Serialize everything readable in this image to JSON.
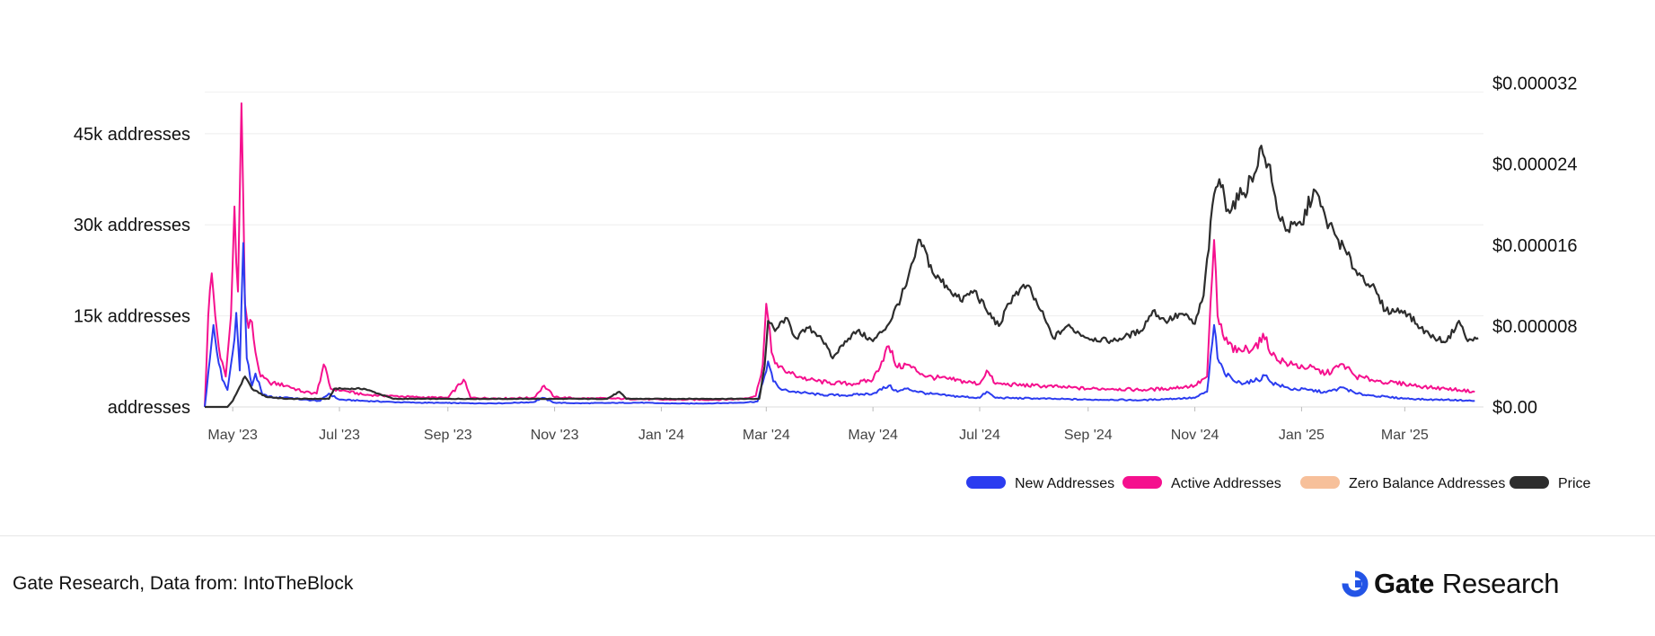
{
  "chart_data": {
    "type": "line",
    "title": "",
    "xlabel": "",
    "ylabel": "",
    "y_left": {
      "range": [
        0,
        54000
      ],
      "ticks": [
        0,
        15000,
        30000,
        45000
      ],
      "tick_labels": [
        "addresses",
        "15k addresses",
        "30k addresses",
        "45k addresses"
      ]
    },
    "y_right": {
      "range": [
        0,
        3.24e-05
      ],
      "ticks": [
        0,
        8e-06,
        1.6e-05,
        2.4e-05,
        3.2e-05
      ],
      "tick_labels": [
        "$0.00",
        "$0.000008",
        "$0.000016",
        "$0.000024",
        "$0.000032"
      ]
    },
    "x_range": [
      "2023-04-15",
      "2025-04-15"
    ],
    "x_ticks": [
      {
        "date": "2023-05-01",
        "label": "May '23"
      },
      {
        "date": "2023-07-01",
        "label": "Jul '23"
      },
      {
        "date": "2023-09-01",
        "label": "Sep '23"
      },
      {
        "date": "2023-11-01",
        "label": "Nov '23"
      },
      {
        "date": "2024-01-01",
        "label": "Jan '24"
      },
      {
        "date": "2024-03-01",
        "label": "Mar '24"
      },
      {
        "date": "2024-05-01",
        "label": "May '24"
      },
      {
        "date": "2024-07-01",
        "label": "Jul '24"
      },
      {
        "date": "2024-09-01",
        "label": "Sep '24"
      },
      {
        "date": "2024-11-01",
        "label": "Nov '24"
      },
      {
        "date": "2025-01-01",
        "label": "Jan '25"
      },
      {
        "date": "2025-03-01",
        "label": "Mar '25"
      }
    ],
    "grid": true,
    "legend_position": "bottom-right",
    "series": [
      {
        "name": "New Addresses",
        "axis": "left",
        "color": "#2b3cf0",
        "points": [
          [
            "2023-04-15",
            0
          ],
          [
            "2023-04-18",
            8000
          ],
          [
            "2023-04-20",
            13500
          ],
          [
            "2023-04-22",
            9000
          ],
          [
            "2023-04-25",
            4500
          ],
          [
            "2023-04-28",
            2800
          ],
          [
            "2023-05-01",
            9000
          ],
          [
            "2023-05-03",
            15500
          ],
          [
            "2023-05-05",
            6000
          ],
          [
            "2023-05-07",
            27000
          ],
          [
            "2023-05-09",
            8000
          ],
          [
            "2023-05-12",
            3500
          ],
          [
            "2023-05-14",
            5500
          ],
          [
            "2023-05-18",
            2000
          ],
          [
            "2023-05-25",
            1500
          ],
          [
            "2023-06-01",
            1600
          ],
          [
            "2023-06-10",
            1200
          ],
          [
            "2023-06-20",
            1000
          ],
          [
            "2023-06-25",
            2200
          ],
          [
            "2023-07-01",
            1200
          ],
          [
            "2023-07-15",
            1000
          ],
          [
            "2023-08-01",
            800
          ],
          [
            "2023-08-15",
            700
          ],
          [
            "2023-09-01",
            650
          ],
          [
            "2023-09-15",
            600
          ],
          [
            "2023-10-01",
            600
          ],
          [
            "2023-10-20",
            800
          ],
          [
            "2023-10-25",
            1500
          ],
          [
            "2023-11-01",
            700
          ],
          [
            "2023-11-15",
            600
          ],
          [
            "2023-12-01",
            650
          ],
          [
            "2023-12-20",
            700
          ],
          [
            "2024-01-01",
            600
          ],
          [
            "2024-01-15",
            550
          ],
          [
            "2024-02-01",
            600
          ],
          [
            "2024-02-15",
            700
          ],
          [
            "2024-02-25",
            900
          ],
          [
            "2024-02-28",
            4000
          ],
          [
            "2024-03-02",
            7500
          ],
          [
            "2024-03-05",
            4200
          ],
          [
            "2024-03-10",
            2800
          ],
          [
            "2024-03-20",
            2400
          ],
          [
            "2024-04-01",
            2000
          ],
          [
            "2024-04-15",
            1900
          ],
          [
            "2024-05-01",
            2200
          ],
          [
            "2024-05-10",
            3500
          ],
          [
            "2024-05-15",
            2500
          ],
          [
            "2024-05-20",
            3000
          ],
          [
            "2024-06-01",
            2200
          ],
          [
            "2024-06-15",
            1800
          ],
          [
            "2024-07-01",
            1500
          ],
          [
            "2024-07-05",
            2500
          ],
          [
            "2024-07-10",
            1500
          ],
          [
            "2024-08-01",
            1400
          ],
          [
            "2024-08-15",
            1300
          ],
          [
            "2024-09-01",
            1200
          ],
          [
            "2024-09-15",
            1200
          ],
          [
            "2024-10-01",
            1100
          ],
          [
            "2024-10-15",
            1300
          ],
          [
            "2024-11-01",
            1500
          ],
          [
            "2024-11-08",
            2500
          ],
          [
            "2024-11-12",
            13500
          ],
          [
            "2024-11-14",
            8000
          ],
          [
            "2024-11-18",
            5500
          ],
          [
            "2024-11-25",
            4000
          ],
          [
            "2024-12-05",
            4200
          ],
          [
            "2024-12-12",
            5200
          ],
          [
            "2024-12-15",
            4000
          ],
          [
            "2024-12-25",
            3000
          ],
          [
            "2025-01-05",
            2800
          ],
          [
            "2025-01-15",
            2400
          ],
          [
            "2025-01-25",
            3200
          ],
          [
            "2025-02-01",
            2200
          ],
          [
            "2025-02-10",
            1900
          ],
          [
            "2025-02-20",
            1600
          ],
          [
            "2025-03-01",
            1400
          ],
          [
            "2025-03-15",
            1200
          ],
          [
            "2025-03-25",
            1200
          ],
          [
            "2025-04-01",
            1100
          ],
          [
            "2025-04-10",
            1000
          ]
        ]
      },
      {
        "name": "Active Addresses",
        "axis": "left",
        "color": "#f5108e",
        "points": [
          [
            "2023-04-15",
            0
          ],
          [
            "2023-04-17",
            15000
          ],
          [
            "2023-04-19",
            22000
          ],
          [
            "2023-04-21",
            15000
          ],
          [
            "2023-04-24",
            8000
          ],
          [
            "2023-04-27",
            5000
          ],
          [
            "2023-04-30",
            15000
          ],
          [
            "2023-05-02",
            33000
          ],
          [
            "2023-05-04",
            19000
          ],
          [
            "2023-05-06",
            50000
          ],
          [
            "2023-05-08",
            17000
          ],
          [
            "2023-05-10",
            13000
          ],
          [
            "2023-05-12",
            14000
          ],
          [
            "2023-05-14",
            9000
          ],
          [
            "2023-05-17",
            5000
          ],
          [
            "2023-05-22",
            4000
          ],
          [
            "2023-06-01",
            3500
          ],
          [
            "2023-06-10",
            2500
          ],
          [
            "2023-06-18",
            2200
          ],
          [
            "2023-06-22",
            7000
          ],
          [
            "2023-06-26",
            3000
          ],
          [
            "2023-07-05",
            2600
          ],
          [
            "2023-07-15",
            2000
          ],
          [
            "2023-08-01",
            1800
          ],
          [
            "2023-08-15",
            1600
          ],
          [
            "2023-09-01",
            1500
          ],
          [
            "2023-09-10",
            4500
          ],
          [
            "2023-09-14",
            1500
          ],
          [
            "2023-10-01",
            1400
          ],
          [
            "2023-10-20",
            1500
          ],
          [
            "2023-10-26",
            3500
          ],
          [
            "2023-11-01",
            1600
          ],
          [
            "2023-11-15",
            1400
          ],
          [
            "2023-12-01",
            1400
          ],
          [
            "2023-12-20",
            1300
          ],
          [
            "2024-01-01",
            1200
          ],
          [
            "2024-01-15",
            1200
          ],
          [
            "2024-02-01",
            1200
          ],
          [
            "2024-02-15",
            1300
          ],
          [
            "2024-02-24",
            1800
          ],
          [
            "2024-02-28",
            7000
          ],
          [
            "2024-03-01",
            17000
          ],
          [
            "2024-03-04",
            9000
          ],
          [
            "2024-03-08",
            6500
          ],
          [
            "2024-03-15",
            5500
          ],
          [
            "2024-03-25",
            4500
          ],
          [
            "2024-04-05",
            4000
          ],
          [
            "2024-04-20",
            3800
          ],
          [
            "2024-05-01",
            4500
          ],
          [
            "2024-05-10",
            10000
          ],
          [
            "2024-05-15",
            6500
          ],
          [
            "2024-05-20",
            7000
          ],
          [
            "2024-06-01",
            5000
          ],
          [
            "2024-06-15",
            4500
          ],
          [
            "2024-07-01",
            3800
          ],
          [
            "2024-07-05",
            6000
          ],
          [
            "2024-07-10",
            3800
          ],
          [
            "2024-08-01",
            3500
          ],
          [
            "2024-08-15",
            3300
          ],
          [
            "2024-09-01",
            3000
          ],
          [
            "2024-09-15",
            3000
          ],
          [
            "2024-10-01",
            2800
          ],
          [
            "2024-10-15",
            3000
          ],
          [
            "2024-11-01",
            3500
          ],
          [
            "2024-11-08",
            5000
          ],
          [
            "2024-11-12",
            27500
          ],
          [
            "2024-11-14",
            15000
          ],
          [
            "2024-11-18",
            11000
          ],
          [
            "2024-11-25",
            9000
          ],
          [
            "2024-12-05",
            10000
          ],
          [
            "2024-12-12",
            11500
          ],
          [
            "2024-12-15",
            8500
          ],
          [
            "2024-12-25",
            7000
          ],
          [
            "2025-01-05",
            6500
          ],
          [
            "2025-01-15",
            5500
          ],
          [
            "2025-01-25",
            7000
          ],
          [
            "2025-02-01",
            5000
          ],
          [
            "2025-02-10",
            4500
          ],
          [
            "2025-02-20",
            4000
          ],
          [
            "2025-03-01",
            3800
          ],
          [
            "2025-03-15",
            3200
          ],
          [
            "2025-03-25",
            3000
          ],
          [
            "2025-04-01",
            2800
          ],
          [
            "2025-04-10",
            2500
          ]
        ]
      },
      {
        "name": "Zero Balance Addresses",
        "axis": "left",
        "color": "#f7c09a",
        "points": []
      },
      {
        "name": "Price",
        "axis": "right",
        "color": "#2d2d2d",
        "points": [
          [
            "2023-04-15",
            0
          ],
          [
            "2023-04-28",
            0
          ],
          [
            "2023-05-01",
            6e-07
          ],
          [
            "2023-05-05",
            2e-06
          ],
          [
            "2023-05-08",
            3e-06
          ],
          [
            "2023-05-12",
            1.8e-06
          ],
          [
            "2023-05-20",
            1e-06
          ],
          [
            "2023-06-01",
            8e-07
          ],
          [
            "2023-06-25",
            8e-07
          ],
          [
            "2023-06-28",
            1.8e-06
          ],
          [
            "2023-07-15",
            1.8e-06
          ],
          [
            "2023-08-01",
            8e-07
          ],
          [
            "2023-09-01",
            8e-07
          ],
          [
            "2023-10-01",
            8e-07
          ],
          [
            "2023-11-01",
            8e-07
          ],
          [
            "2023-12-01",
            8e-07
          ],
          [
            "2023-12-08",
            1.5e-06
          ],
          [
            "2023-12-12",
            8e-07
          ],
          [
            "2024-01-01",
            8e-07
          ],
          [
            "2024-02-01",
            8e-07
          ],
          [
            "2024-02-26",
            8e-07
          ],
          [
            "2024-02-29",
            4e-06
          ],
          [
            "2024-03-02",
            8.5e-06
          ],
          [
            "2024-03-06",
            7.5e-06
          ],
          [
            "2024-03-12",
            8.8e-06
          ],
          [
            "2024-03-18",
            6.8e-06
          ],
          [
            "2024-03-25",
            7.8e-06
          ],
          [
            "2024-04-01",
            7e-06
          ],
          [
            "2024-04-08",
            4.8e-06
          ],
          [
            "2024-04-15",
            6.5e-06
          ],
          [
            "2024-04-22",
            7.5e-06
          ],
          [
            "2024-05-01",
            6.5e-06
          ],
          [
            "2024-05-10",
            8.2e-06
          ],
          [
            "2024-05-20",
            1.2e-05
          ],
          [
            "2024-05-28",
            1.65e-05
          ],
          [
            "2024-06-05",
            1.3e-05
          ],
          [
            "2024-06-12",
            1.2e-05
          ],
          [
            "2024-06-20",
            1.05e-05
          ],
          [
            "2024-06-28",
            1.15e-05
          ],
          [
            "2024-07-05",
            9.5e-06
          ],
          [
            "2024-07-12",
            8e-06
          ],
          [
            "2024-07-20",
            1.1e-05
          ],
          [
            "2024-07-28",
            1.2e-05
          ],
          [
            "2024-08-05",
            9.5e-06
          ],
          [
            "2024-08-12",
            6.8e-06
          ],
          [
            "2024-08-20",
            8e-06
          ],
          [
            "2024-09-01",
            6.8e-06
          ],
          [
            "2024-09-15",
            6.5e-06
          ],
          [
            "2024-10-01",
            7.5e-06
          ],
          [
            "2024-10-08",
            9.5e-06
          ],
          [
            "2024-10-15",
            8.5e-06
          ],
          [
            "2024-10-25",
            9.2e-06
          ],
          [
            "2024-11-01",
            8.2e-06
          ],
          [
            "2024-11-06",
            1.1e-05
          ],
          [
            "2024-11-12",
            2.1e-05
          ],
          [
            "2024-11-15",
            2.25e-05
          ],
          [
            "2024-11-20",
            1.95e-05
          ],
          [
            "2024-11-28",
            2.1e-05
          ],
          [
            "2024-12-05",
            2.3e-05
          ],
          [
            "2024-12-08",
            2.55e-05
          ],
          [
            "2024-12-13",
            2.4e-05
          ],
          [
            "2024-12-18",
            1.95e-05
          ],
          [
            "2024-12-24",
            1.75e-05
          ],
          [
            "2025-01-01",
            1.8e-05
          ],
          [
            "2025-01-08",
            2.15e-05
          ],
          [
            "2025-01-15",
            1.85e-05
          ],
          [
            "2025-01-22",
            1.65e-05
          ],
          [
            "2025-02-01",
            1.35e-05
          ],
          [
            "2025-02-10",
            1.2e-05
          ],
          [
            "2025-02-18",
            9.5e-06
          ],
          [
            "2025-03-01",
            9.5e-06
          ],
          [
            "2025-03-10",
            7.8e-06
          ],
          [
            "2025-03-18",
            6.8e-06
          ],
          [
            "2025-03-25",
            6.5e-06
          ],
          [
            "2025-04-01",
            8.5e-06
          ],
          [
            "2025-04-06",
            6.5e-06
          ],
          [
            "2025-04-12",
            6.8e-06
          ]
        ]
      }
    ]
  },
  "footer": {
    "source": "Gate Research, Data from: IntoTheBlock",
    "brand_name": "Gate",
    "brand_sub": "Research",
    "brand_color": "#2354e6"
  }
}
